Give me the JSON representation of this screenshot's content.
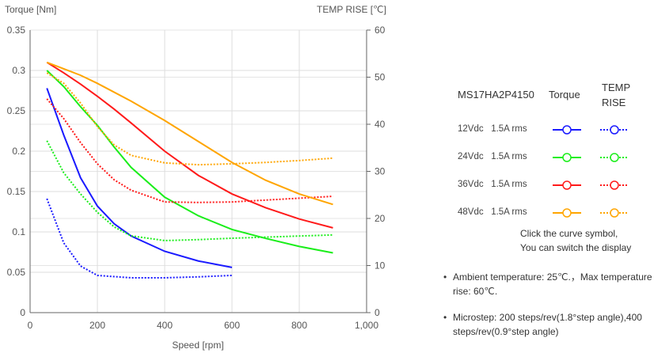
{
  "chart_data": {
    "type": "line",
    "xlabel": "Speed [rpm]",
    "ylabel": "Torque  [Nm]",
    "y2label": "TEMP RISE [℃]",
    "xlim": [
      0,
      1000
    ],
    "ylim": [
      0,
      0.35
    ],
    "y2lim": [
      0,
      60
    ],
    "xticks": [
      "0",
      "200",
      "400",
      "600",
      "800",
      "1,000"
    ],
    "yticks": [
      "0",
      "0.05",
      "0.1",
      "0.15",
      "0.2",
      "0.25",
      "0.3",
      "0.35"
    ],
    "y2ticks": [
      "0",
      "10",
      "20",
      "30",
      "40",
      "50",
      "60"
    ],
    "grid": true,
    "series": [
      {
        "name": "12Vdc 1.5A rms Torque",
        "color": "#1a1aff",
        "axis": "left",
        "style": "solid",
        "x": [
          50,
          100,
          150,
          200,
          250,
          300,
          400,
          500,
          600
        ],
        "y": [
          0.278,
          0.22,
          0.167,
          0.132,
          0.11,
          0.095,
          0.076,
          0.064,
          0.056
        ]
      },
      {
        "name": "12Vdc 1.5A rms TEMP RISE",
        "color": "#1a1aff",
        "axis": "right",
        "style": "dotted",
        "x": [
          50,
          100,
          150,
          200,
          300,
          400,
          500,
          600
        ],
        "y": [
          24.2,
          14.8,
          9.9,
          7.9,
          7.4,
          7.4,
          7.6,
          7.9
        ]
      },
      {
        "name": "24Vdc 1.5A rms Torque",
        "color": "#1aee1a",
        "axis": "left",
        "style": "solid",
        "x": [
          50,
          100,
          150,
          200,
          250,
          300,
          400,
          500,
          600,
          700,
          800,
          900
        ],
        "y": [
          0.3,
          0.28,
          0.255,
          0.232,
          0.205,
          0.18,
          0.143,
          0.12,
          0.103,
          0.092,
          0.082,
          0.074
        ]
      },
      {
        "name": "24Vdc 1.5A rms TEMP RISE",
        "color": "#1aee1a",
        "axis": "right",
        "style": "dotted",
        "x": [
          50,
          100,
          150,
          200,
          250,
          300,
          400,
          500,
          600,
          900
        ],
        "y": [
          36.5,
          29.7,
          25.2,
          21.3,
          18.2,
          16.3,
          15.3,
          15.5,
          15.8,
          16.5
        ]
      },
      {
        "name": "36Vdc 1.5A rms Torque",
        "color": "#ff1a1a",
        "axis": "left",
        "style": "solid",
        "x": [
          50,
          100,
          150,
          200,
          250,
          300,
          400,
          500,
          600,
          700,
          800,
          900
        ],
        "y": [
          0.31,
          0.297,
          0.283,
          0.268,
          0.252,
          0.235,
          0.2,
          0.17,
          0.147,
          0.13,
          0.116,
          0.105
        ]
      },
      {
        "name": "36Vdc 1.5A rms TEMP RISE",
        "color": "#ff1a1a",
        "axis": "right",
        "style": "dotted",
        "x": [
          50,
          100,
          150,
          200,
          250,
          300,
          400,
          500,
          600,
          900
        ],
        "y": [
          45.4,
          41.2,
          36.1,
          31.6,
          28.2,
          26,
          23.5,
          23.4,
          23.5,
          24.7
        ]
      },
      {
        "name": "48Vdc 1.5A rms Torque",
        "color": "#ffa500",
        "axis": "left",
        "style": "solid",
        "x": [
          50,
          100,
          150,
          200,
          300,
          400,
          500,
          600,
          700,
          800,
          900
        ],
        "y": [
          0.31,
          0.302,
          0.294,
          0.284,
          0.262,
          0.238,
          0.212,
          0.186,
          0.164,
          0.147,
          0.134
        ]
      },
      {
        "name": "48Vdc 1.5A rms TEMP RISE",
        "color": "#ffa500",
        "axis": "right",
        "style": "dotted",
        "x": [
          50,
          100,
          150,
          200,
          250,
          300,
          400,
          500,
          600,
          700,
          800,
          900
        ],
        "y": [
          50.9,
          48.7,
          44.5,
          39.5,
          35.6,
          33.4,
          31.8,
          31.4,
          31.6,
          31.9,
          32.3,
          32.8
        ]
      }
    ]
  },
  "legend": {
    "model": "MS17HA2P4150",
    "torque": "Torque",
    "temp1": "TEMP",
    "temp2": "RISE",
    "rows": [
      {
        "label": "12Vdc   1.5A rms",
        "color": "#1a1aff"
      },
      {
        "label": "24Vdc   1.5A rms",
        "color": "#1aee1a"
      },
      {
        "label": "36Vdc   1.5A rms",
        "color": "#ff1a1a"
      },
      {
        "label": "48Vdc   1.5A rms",
        "color": "#ffa500"
      }
    ],
    "hint1": "Click the curve symbol,",
    "hint2": "You can switch the display"
  },
  "notes": [
    "Ambient temperature: 25℃.，Max temperature rise: 60℃.",
    "Microstep: 200 steps/rev(1.8°step angle),400 steps/rev(0.9°step angle)"
  ]
}
